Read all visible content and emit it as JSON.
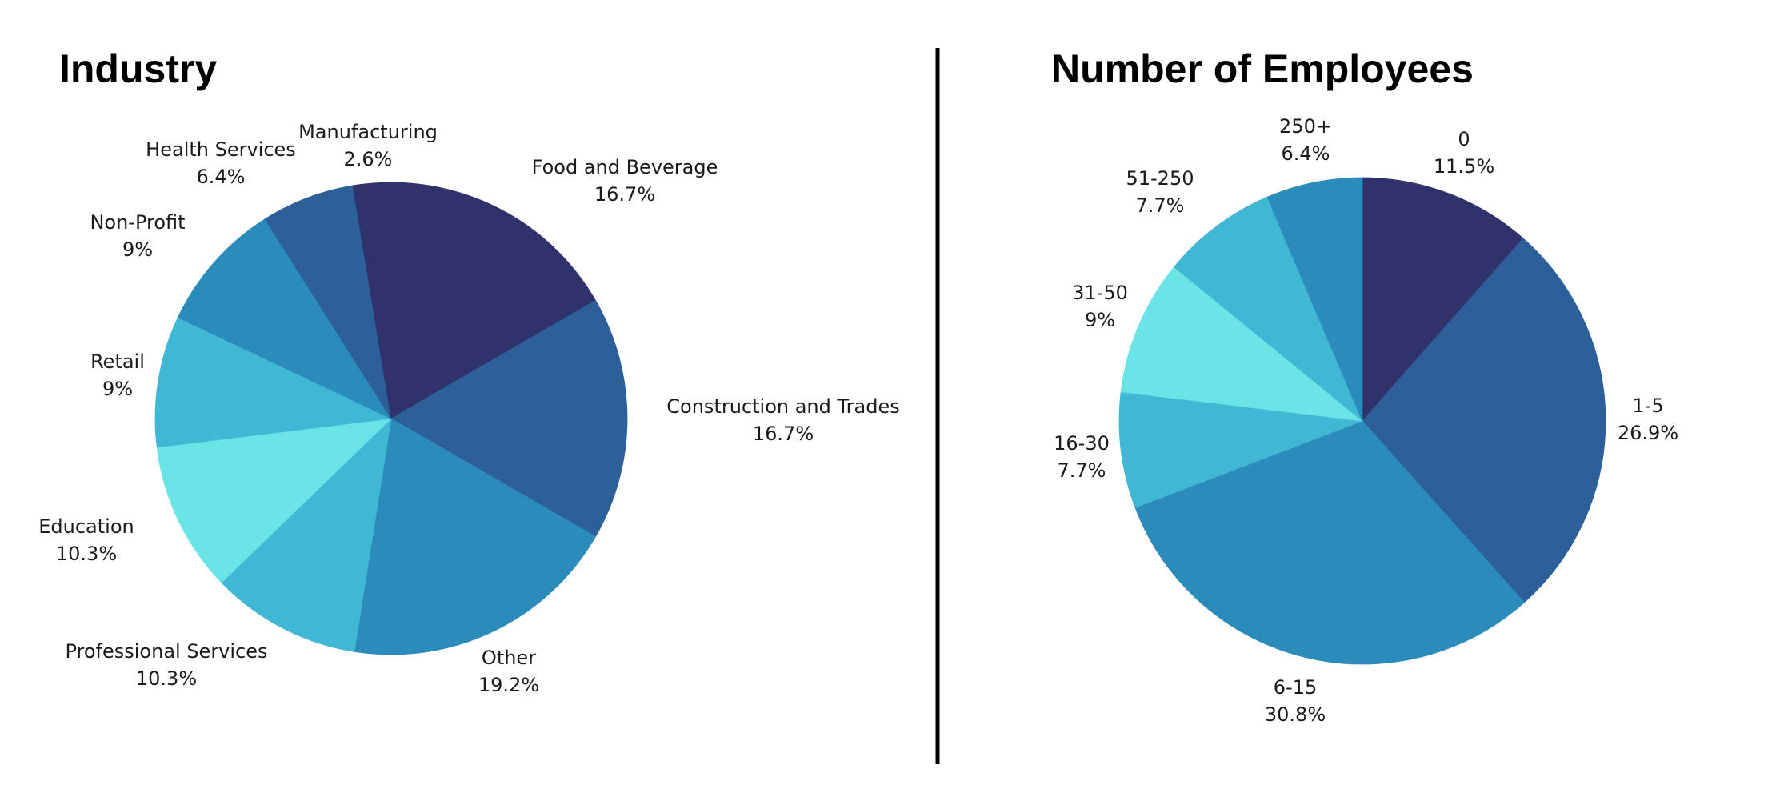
{
  "chart_data": [
    {
      "type": "pie",
      "title": "Industry",
      "slices": [
        {
          "label": "Food and Beverage",
          "value": 16.7,
          "value_label": "16.7%",
          "color": "#30336B"
        },
        {
          "label": "Construction and Trades",
          "value": 16.7,
          "value_label": "16.7%",
          "color": "#2D5F98"
        },
        {
          "label": "Other",
          "value": 19.2,
          "value_label": "19.2%",
          "color": "#2B8BBA"
        },
        {
          "label": "Professional Services",
          "value": 10.3,
          "value_label": "10.3%",
          "color": "#41B7D6"
        },
        {
          "label": "Education",
          "value": 10.3,
          "value_label": "10.3%",
          "color": "#6AE4E6"
        },
        {
          "label": "Retail",
          "value": 9,
          "value_label": "9%",
          "color": "#41B7D6"
        },
        {
          "label": "Non-Profit",
          "value": 9,
          "value_label": "9%",
          "color": "#2B8BBA"
        },
        {
          "label": "Health Services",
          "value": 6.4,
          "value_label": "6.4%",
          "color": "#2D5F98"
        },
        {
          "label": "Manufacturing",
          "value": 2.6,
          "value_label": "2.6%",
          "color": "#30336B"
        }
      ],
      "start_angle_deg": 0,
      "direction": "clockwise",
      "legend": "none"
    },
    {
      "type": "pie",
      "title": "Number of Employees",
      "slices": [
        {
          "label": "0",
          "value": 11.5,
          "value_label": "11.5%",
          "color": "#30336B"
        },
        {
          "label": "1-5",
          "value": 26.9,
          "value_label": "26.9%",
          "color": "#2D5F98"
        },
        {
          "label": "6-15",
          "value": 30.8,
          "value_label": "30.8%",
          "color": "#2B8BBA"
        },
        {
          "label": "16-30",
          "value": 7.7,
          "value_label": "7.7%",
          "color": "#41B7D6"
        },
        {
          "label": "31-50",
          "value": 9,
          "value_label": "9%",
          "color": "#6AE4E6"
        },
        {
          "label": "51-250",
          "value": 7.7,
          "value_label": "7.7%",
          "color": "#41B7D6"
        },
        {
          "label": "250+",
          "value": 6.4,
          "value_label": "6.4%",
          "color": "#2B8BBA"
        }
      ],
      "start_angle_deg": 0,
      "direction": "clockwise",
      "legend": "none"
    }
  ]
}
